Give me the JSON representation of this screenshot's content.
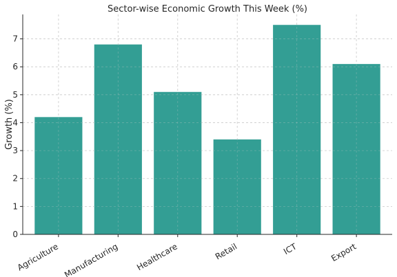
{
  "chart_data": {
    "type": "bar",
    "title": "Sector-wise Economic Growth This Week (%)",
    "xlabel": "",
    "ylabel": "Growth (%)",
    "categories": [
      "Agriculture",
      "Manufacturing",
      "Healthcare",
      "Retail",
      "ICT",
      "Export"
    ],
    "values": [
      4.2,
      6.8,
      5.1,
      3.4,
      7.5,
      6.1
    ],
    "ylim": [
      0,
      7.875
    ],
    "yticks": [
      "0",
      "1",
      "2",
      "3",
      "4",
      "5",
      "6",
      "7"
    ],
    "grid": true,
    "bar_color": "#339e94"
  }
}
